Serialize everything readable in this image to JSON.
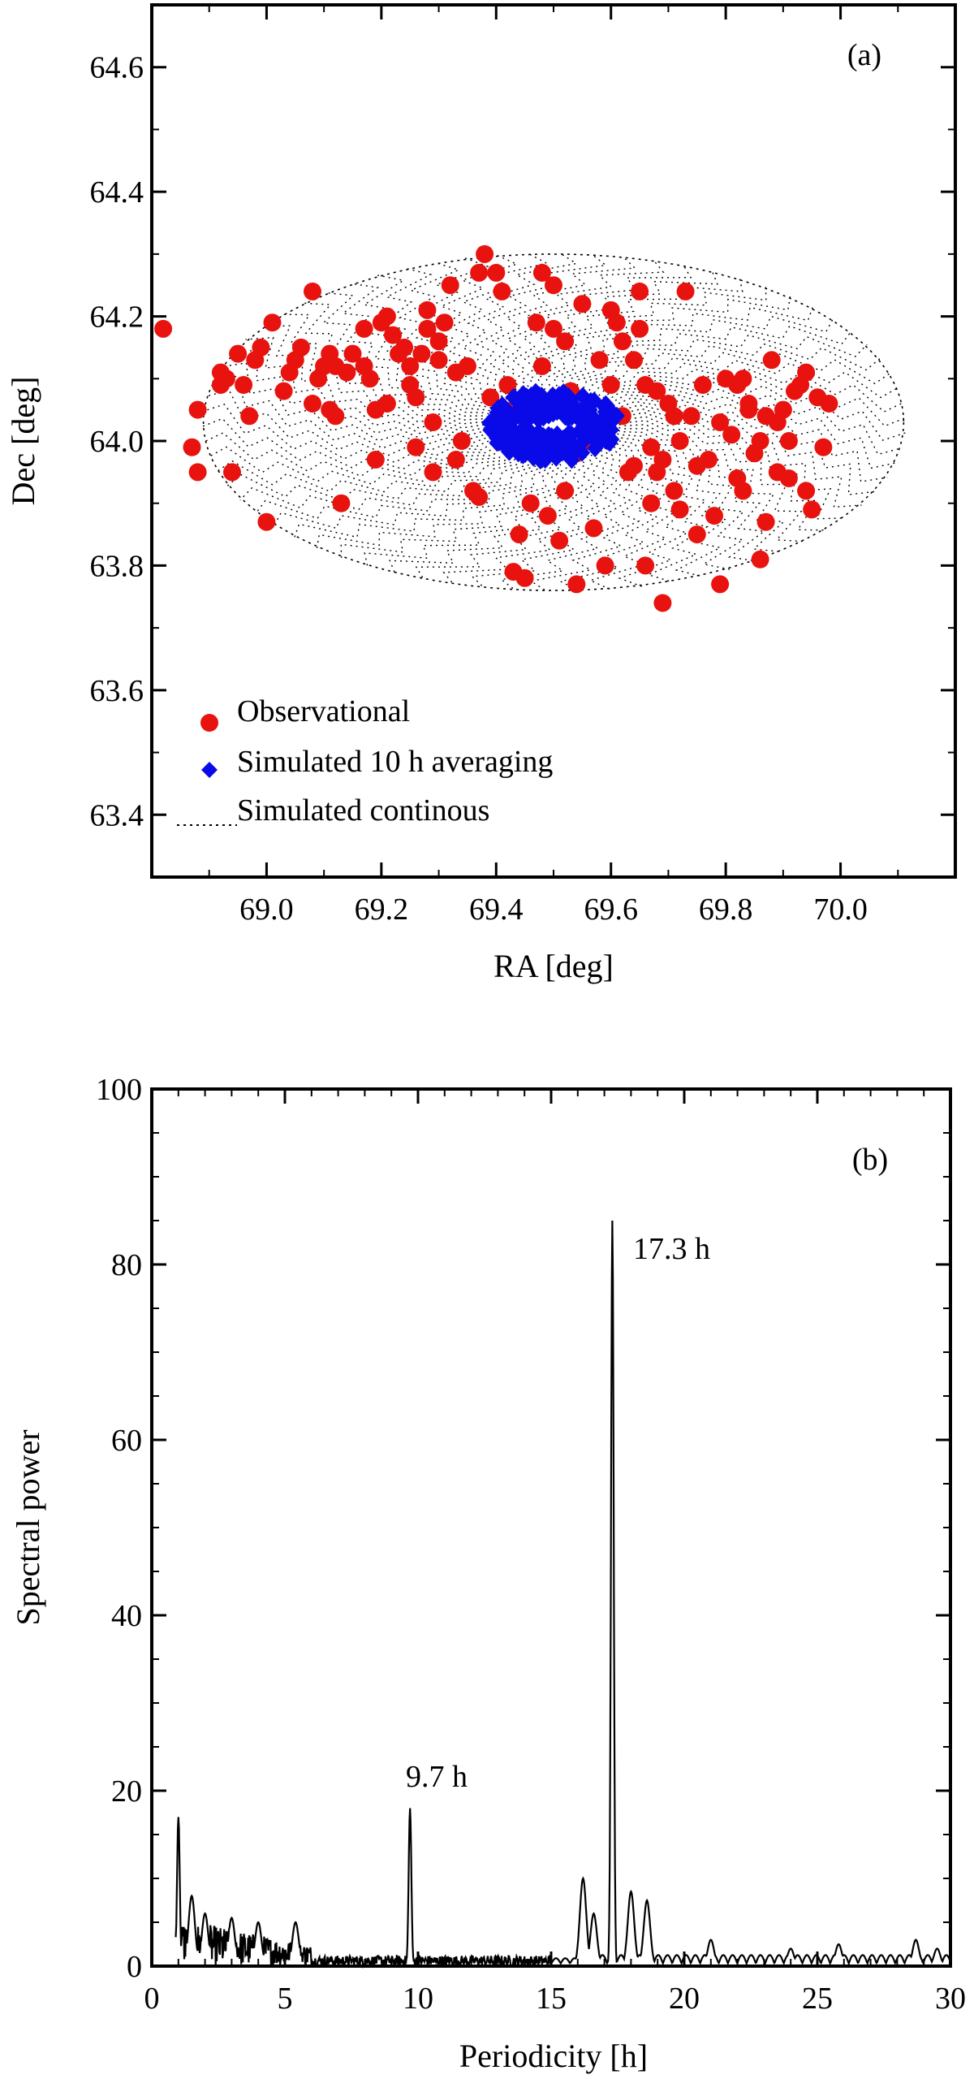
{
  "chart_data": [
    {
      "type": "scatter",
      "panel_label": "(a)",
      "xlabel": "RA [deg]",
      "ylabel": "Dec [deg]",
      "xlim": [
        68.8,
        70.2
      ],
      "ylim": [
        63.3,
        64.7
      ],
      "xticks": [
        "69.0",
        "69.2",
        "69.4",
        "69.6",
        "69.8",
        "70.0"
      ],
      "yticks": [
        "63.4",
        "63.6",
        "63.8",
        "64.0",
        "64.2",
        "64.4",
        "64.6"
      ],
      "legend_position": "bottom-left",
      "series": [
        {
          "name": "Observational",
          "marker": "circle",
          "color": "#e8130f",
          "points": [
            [
              68.82,
              64.18
            ],
            [
              68.87,
              63.99
            ],
            [
              68.88,
              63.95
            ],
            [
              68.88,
              64.05
            ],
            [
              68.92,
              64.09
            ],
            [
              68.92,
              64.11
            ],
            [
              68.93,
              64.1
            ],
            [
              68.94,
              63.95
            ],
            [
              68.95,
              64.14
            ],
            [
              68.96,
              64.09
            ],
            [
              68.97,
              64.04
            ],
            [
              68.98,
              64.13
            ],
            [
              68.99,
              64.15
            ],
            [
              69.0,
              63.87
            ],
            [
              69.01,
              64.19
            ],
            [
              69.03,
              64.08
            ],
            [
              69.04,
              64.11
            ],
            [
              69.05,
              64.13
            ],
            [
              69.06,
              64.15
            ],
            [
              69.08,
              64.06
            ],
            [
              69.08,
              64.24
            ],
            [
              69.09,
              64.1
            ],
            [
              69.1,
              64.12
            ],
            [
              69.11,
              64.05
            ],
            [
              69.11,
              64.14
            ],
            [
              69.12,
              64.12
            ],
            [
              69.12,
              64.04
            ],
            [
              69.13,
              63.9
            ],
            [
              69.14,
              64.11
            ],
            [
              69.15,
              64.14
            ],
            [
              69.17,
              64.18
            ],
            [
              69.17,
              64.12
            ],
            [
              69.18,
              64.1
            ],
            [
              69.19,
              63.97
            ],
            [
              69.19,
              64.05
            ],
            [
              69.2,
              64.19
            ],
            [
              69.21,
              64.2
            ],
            [
              69.21,
              64.06
            ],
            [
              69.22,
              64.17
            ],
            [
              69.23,
              64.14
            ],
            [
              69.24,
              64.15
            ],
            [
              69.25,
              64.09
            ],
            [
              69.25,
              64.12
            ],
            [
              69.26,
              63.99
            ],
            [
              69.26,
              64.07
            ],
            [
              69.27,
              64.14
            ],
            [
              69.28,
              64.18
            ],
            [
              69.28,
              64.21
            ],
            [
              69.29,
              63.95
            ],
            [
              69.29,
              64.03
            ],
            [
              69.3,
              64.13
            ],
            [
              69.3,
              64.16
            ],
            [
              69.31,
              64.19
            ],
            [
              69.32,
              64.25
            ],
            [
              69.33,
              64.11
            ],
            [
              69.33,
              63.97
            ],
            [
              69.34,
              64.0
            ],
            [
              69.35,
              64.12
            ],
            [
              69.36,
              63.92
            ],
            [
              69.37,
              63.91
            ],
            [
              69.37,
              64.27
            ],
            [
              69.38,
              64.3
            ],
            [
              69.39,
              64.07
            ],
            [
              69.4,
              64.27
            ],
            [
              69.41,
              64.24
            ],
            [
              69.42,
              64.09
            ],
            [
              69.43,
              64.05
            ],
            [
              69.43,
              63.79
            ],
            [
              69.44,
              63.85
            ],
            [
              69.45,
              63.78
            ],
            [
              69.46,
              63.9
            ],
            [
              69.47,
              64.19
            ],
            [
              69.48,
              64.27
            ],
            [
              69.48,
              64.12
            ],
            [
              69.49,
              63.88
            ],
            [
              69.5,
              64.18
            ],
            [
              69.5,
              64.25
            ],
            [
              69.51,
              63.84
            ],
            [
              69.52,
              63.92
            ],
            [
              69.52,
              64.16
            ],
            [
              69.53,
              64.08
            ],
            [
              69.54,
              63.98
            ],
            [
              69.54,
              63.77
            ],
            [
              69.55,
              64.22
            ],
            [
              69.56,
              64.0
            ],
            [
              69.57,
              63.86
            ],
            [
              69.58,
              64.13
            ],
            [
              69.59,
              63.8
            ],
            [
              69.6,
              64.09
            ],
            [
              69.6,
              64.21
            ],
            [
              69.61,
              64.19
            ],
            [
              69.62,
              64.04
            ],
            [
              69.62,
              64.16
            ],
            [
              69.63,
              63.95
            ],
            [
              69.64,
              64.13
            ],
            [
              69.64,
              63.96
            ],
            [
              69.65,
              64.24
            ],
            [
              69.65,
              64.18
            ],
            [
              69.66,
              63.8
            ],
            [
              69.66,
              64.09
            ],
            [
              69.67,
              63.9
            ],
            [
              69.67,
              63.99
            ],
            [
              69.68,
              63.95
            ],
            [
              69.68,
              64.08
            ],
            [
              69.69,
              63.74
            ],
            [
              69.69,
              63.97
            ],
            [
              69.7,
              64.06
            ],
            [
              69.71,
              64.04
            ],
            [
              69.71,
              63.92
            ],
            [
              69.72,
              64.0
            ],
            [
              69.72,
              63.89
            ],
            [
              69.73,
              64.24
            ],
            [
              69.74,
              64.04
            ],
            [
              69.75,
              63.96
            ],
            [
              69.75,
              63.85
            ],
            [
              69.76,
              64.09
            ],
            [
              69.77,
              63.97
            ],
            [
              69.78,
              63.88
            ],
            [
              69.79,
              64.03
            ],
            [
              69.79,
              63.77
            ],
            [
              69.8,
              64.1
            ],
            [
              69.81,
              64.01
            ],
            [
              69.82,
              64.09
            ],
            [
              69.82,
              63.94
            ],
            [
              69.83,
              64.1
            ],
            [
              69.83,
              63.92
            ],
            [
              69.84,
              64.06
            ],
            [
              69.84,
              64.05
            ],
            [
              69.85,
              63.98
            ],
            [
              69.86,
              64.0
            ],
            [
              69.86,
              63.81
            ],
            [
              69.87,
              64.04
            ],
            [
              69.87,
              63.87
            ],
            [
              69.88,
              64.13
            ],
            [
              69.89,
              64.03
            ],
            [
              69.89,
              63.95
            ],
            [
              69.9,
              64.05
            ],
            [
              69.91,
              64.0
            ],
            [
              69.91,
              63.94
            ],
            [
              69.92,
              64.08
            ],
            [
              69.93,
              64.09
            ],
            [
              69.94,
              64.11
            ],
            [
              69.94,
              63.92
            ],
            [
              69.95,
              63.89
            ],
            [
              69.96,
              64.07
            ],
            [
              69.97,
              63.99
            ],
            [
              69.98,
              64.06
            ]
          ]
        },
        {
          "name": "Simulated 10 h averaging",
          "marker": "diamond",
          "color": "#0a0ae8",
          "center": [
            69.5,
            64.025
          ],
          "ring_inner": [
            0.05,
            0.013
          ],
          "ring_outer": [
            0.115,
            0.058
          ],
          "count": 260
        },
        {
          "name": "Simulated continous",
          "marker": "dotted-line",
          "color": "#000000",
          "center": [
            69.5,
            64.03
          ],
          "semi_axes": [
            0.61,
            0.27
          ]
        }
      ]
    },
    {
      "type": "line",
      "panel_label": "(b)",
      "xlabel": "Periodicity [h]",
      "ylabel": "Spectral power",
      "xlim": [
        0,
        30
      ],
      "ylim": [
        0,
        100
      ],
      "xticks": [
        "0",
        "5",
        "10",
        "15",
        "20",
        "25",
        "30"
      ],
      "yticks": [
        "0",
        "20",
        "40",
        "60",
        "80",
        "100"
      ],
      "series": [
        {
          "name": "Spectral power",
          "color": "#000000",
          "peaks": [
            {
              "x": 1.0,
              "y": 17
            },
            {
              "x": 1.5,
              "y": 8
            },
            {
              "x": 2.0,
              "y": 6
            },
            {
              "x": 3.0,
              "y": 5.5
            },
            {
              "x": 4.0,
              "y": 5
            },
            {
              "x": 5.4,
              "y": 5
            },
            {
              "x": 9.7,
              "y": 18
            },
            {
              "x": 16.2,
              "y": 10
            },
            {
              "x": 16.6,
              "y": 6
            },
            {
              "x": 17.3,
              "y": 85
            },
            {
              "x": 18.0,
              "y": 8.5
            },
            {
              "x": 18.6,
              "y": 7.5
            },
            {
              "x": 21.0,
              "y": 3
            },
            {
              "x": 24.0,
              "y": 2
            },
            {
              "x": 25.8,
              "y": 2.5
            },
            {
              "x": 28.7,
              "y": 3
            },
            {
              "x": 29.5,
              "y": 2
            }
          ]
        }
      ],
      "annotations": [
        {
          "text": "17.3 h",
          "x": 18.1,
          "y": 82
        },
        {
          "text": "9.7 h",
          "x": 9.8,
          "y": 20
        }
      ]
    }
  ]
}
